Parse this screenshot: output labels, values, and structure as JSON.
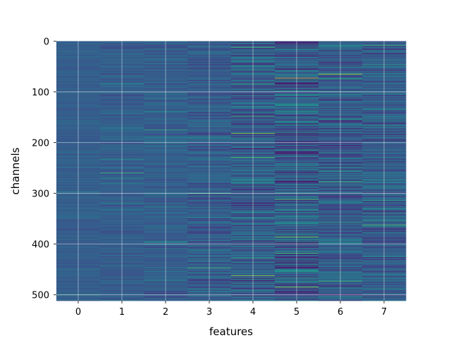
{
  "chart_data": {
    "type": "heatmap",
    "title": "",
    "xlabel": "features",
    "ylabel": "channels",
    "x_ticks": [
      0,
      1,
      2,
      3,
      4,
      5,
      6,
      7
    ],
    "y_ticks": [
      0,
      100,
      200,
      300,
      400,
      500
    ],
    "n_columns": 8,
    "n_rows": 512,
    "xlim": [
      -0.5,
      7.5
    ],
    "ylim": [
      511.5,
      -0.5
    ],
    "y_axis_inverted": true,
    "grid": true,
    "colormap": "viridis",
    "legend": "none",
    "background_value_approx": 0.3,
    "column_variation_approx": [
      0.05,
      0.07,
      0.08,
      0.11,
      0.16,
      0.2,
      0.16,
      0.14
    ],
    "highlight_cells": [
      {
        "feature": 5,
        "channel": 73,
        "value": 0.95
      },
      {
        "feature": 6,
        "channel": 65,
        "value": 0.9
      },
      {
        "feature": 4,
        "channel": 182,
        "value": 0.85
      },
      {
        "feature": 4,
        "channel": 462,
        "value": 0.85
      },
      {
        "feature": 5,
        "channel": 386,
        "value": 0.8
      },
      {
        "feature": 5,
        "channel": 312,
        "value": 0.75
      },
      {
        "feature": 3,
        "channel": 300,
        "value": 0.7
      },
      {
        "feature": 1,
        "channel": 260,
        "value": 0.7
      },
      {
        "feature": 7,
        "channel": 362,
        "value": 0.75
      },
      {
        "feature": 2,
        "channel": 175,
        "value": 0.65
      },
      {
        "feature": 0,
        "channel": 500,
        "value": 0.65
      },
      {
        "feature": 6,
        "channel": 473,
        "value": 0.7
      },
      {
        "feature": 3,
        "channel": 447,
        "value": 0.7
      },
      {
        "feature": 4,
        "channel": 148,
        "value": 0.7
      },
      {
        "feature": 7,
        "channel": 8,
        "value": 0.7
      },
      {
        "feature": 4,
        "channel": 12,
        "value": 0.7
      }
    ]
  },
  "colors": {
    "colormap_low": "#440154",
    "colormap_mid": "#21918c",
    "colormap_high": "#fde725",
    "grid": "#ffffff",
    "text": "#000000"
  }
}
